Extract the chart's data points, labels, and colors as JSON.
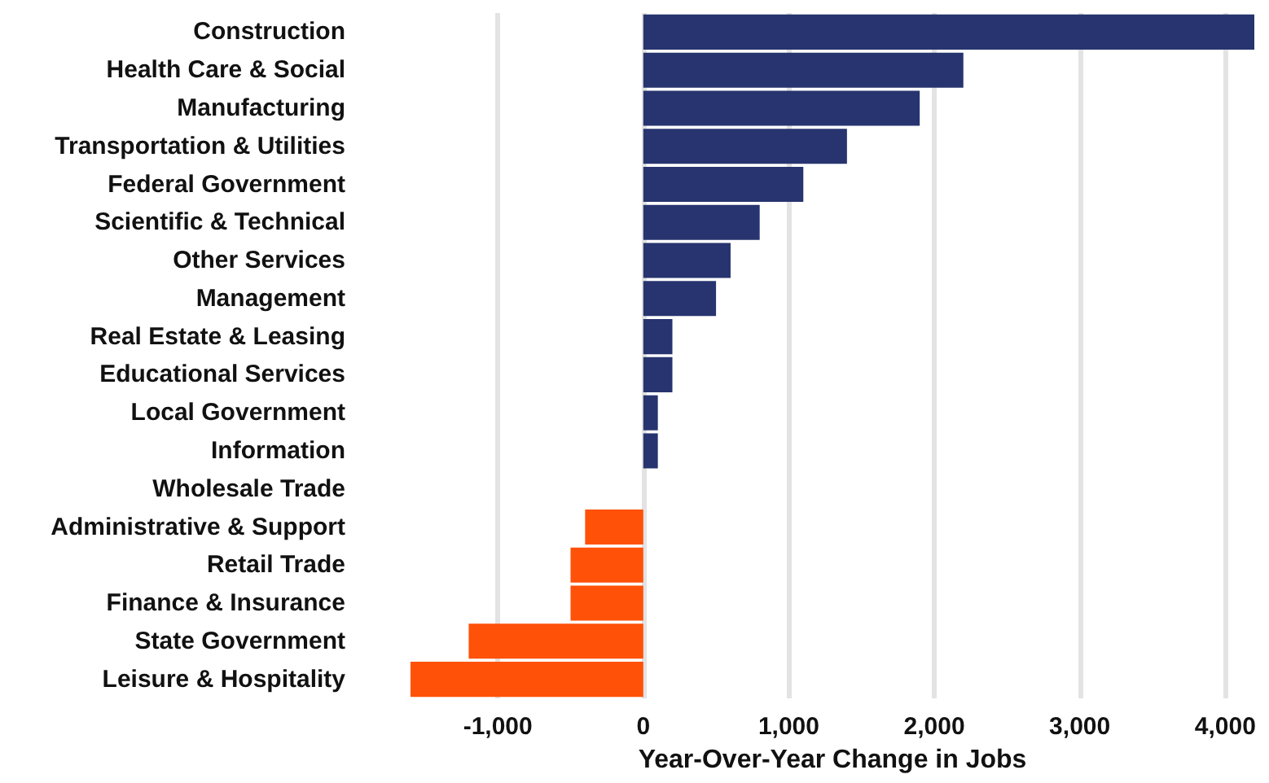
{
  "chart_data": {
    "type": "bar",
    "orientation": "horizontal",
    "xlabel": "Year-Over-Year Change in Jobs",
    "categories": [
      "Construction",
      "Health Care & Social",
      "Manufacturing",
      "Transportation & Utilities",
      "Federal Government",
      "Scientific & Technical",
      "Other Services",
      "Management",
      "Real Estate & Leasing",
      "Educational Services",
      "Local Government",
      "Information",
      "Wholesale Trade",
      "Administrative & Support",
      "Retail Trade",
      "Finance & Insurance",
      "State Government",
      "Leisure & Hospitality"
    ],
    "values": [
      4200,
      2200,
      1900,
      1400,
      1100,
      800,
      600,
      500,
      200,
      200,
      100,
      100,
      0,
      -400,
      -500,
      -500,
      -1200,
      -1600
    ],
    "colors": [
      "#27346f",
      "#27346f",
      "#27346f",
      "#27346f",
      "#27346f",
      "#27346f",
      "#27346f",
      "#27346f",
      "#27346f",
      "#27346f",
      "#27346f",
      "#27346f",
      "#27346f",
      "#ff5108",
      "#ff5108",
      "#ff5108",
      "#ff5108",
      "#ff5108"
    ],
    "xlim": [
      -1600,
      4200
    ],
    "xticks": [
      {
        "value": -1000,
        "label": "-1,000"
      },
      {
        "value": 0,
        "label": "0"
      },
      {
        "value": 1000,
        "label": "1,000"
      },
      {
        "value": 2000,
        "label": "2,000"
      },
      {
        "value": 3000,
        "label": "3,000"
      },
      {
        "value": 4000,
        "label": "4,000"
      }
    ],
    "grid": "x"
  }
}
